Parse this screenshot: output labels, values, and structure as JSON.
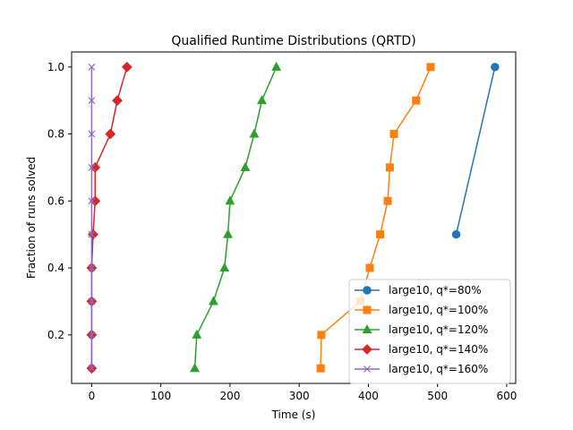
{
  "chart_data": {
    "type": "line",
    "title": "Qualified Runtime Distributions (QRTD)",
    "xlabel": "Time (s)",
    "ylabel": "Fraction of runs solved",
    "xlim": [
      -29,
      613
    ],
    "ylim": [
      0.055,
      1.045
    ],
    "xticks": [
      0,
      100,
      200,
      300,
      400,
      500,
      600
    ],
    "yticks": [
      0.2,
      0.4,
      0.6,
      0.8,
      1.0
    ],
    "xtick_labels": [
      "0",
      "100",
      "200",
      "300",
      "400",
      "500",
      "600"
    ],
    "ytick_labels": [
      "0.2",
      "0.4",
      "0.6",
      "0.8",
      "1.0"
    ],
    "grid": false,
    "legend_position": "lower-right",
    "series": [
      {
        "name": "large10, q*=80%",
        "color": "#1f77b4",
        "marker": "circle",
        "x": [
          527,
          583
        ],
        "y": [
          0.5,
          1.0
        ]
      },
      {
        "name": "large10, q*=100%",
        "color": "#ff7f0e",
        "marker": "square",
        "x": [
          331,
          332,
          388,
          402,
          417,
          428,
          431,
          437,
          469,
          490
        ],
        "y": [
          0.1,
          0.2,
          0.3,
          0.4,
          0.5,
          0.6,
          0.7,
          0.8,
          0.9,
          1.0
        ]
      },
      {
        "name": "large10, q*=120%",
        "color": "#2ca02c",
        "marker": "triangle",
        "x": [
          149,
          152,
          176,
          192,
          197,
          200,
          222,
          235,
          246,
          267
        ],
        "y": [
          0.1,
          0.2,
          0.3,
          0.4,
          0.5,
          0.6,
          0.7,
          0.8,
          0.9,
          1.0
        ]
      },
      {
        "name": "large10, q*=140%",
        "color": "#d62728",
        "marker": "diamond",
        "x": [
          0,
          0,
          0,
          0,
          2,
          5,
          5,
          27,
          37,
          51
        ],
        "y": [
          0.1,
          0.2,
          0.3,
          0.4,
          0.5,
          0.6,
          0.7,
          0.8,
          0.9,
          1.0
        ]
      },
      {
        "name": "large10, q*=160%",
        "color": "#9467bd",
        "marker": "x",
        "x": [
          0,
          0,
          0,
          0,
          0,
          0,
          0,
          0,
          0,
          0
        ],
        "y": [
          0.1,
          0.2,
          0.3,
          0.4,
          0.5,
          0.6,
          0.7,
          0.8,
          0.9,
          1.0
        ]
      }
    ]
  }
}
